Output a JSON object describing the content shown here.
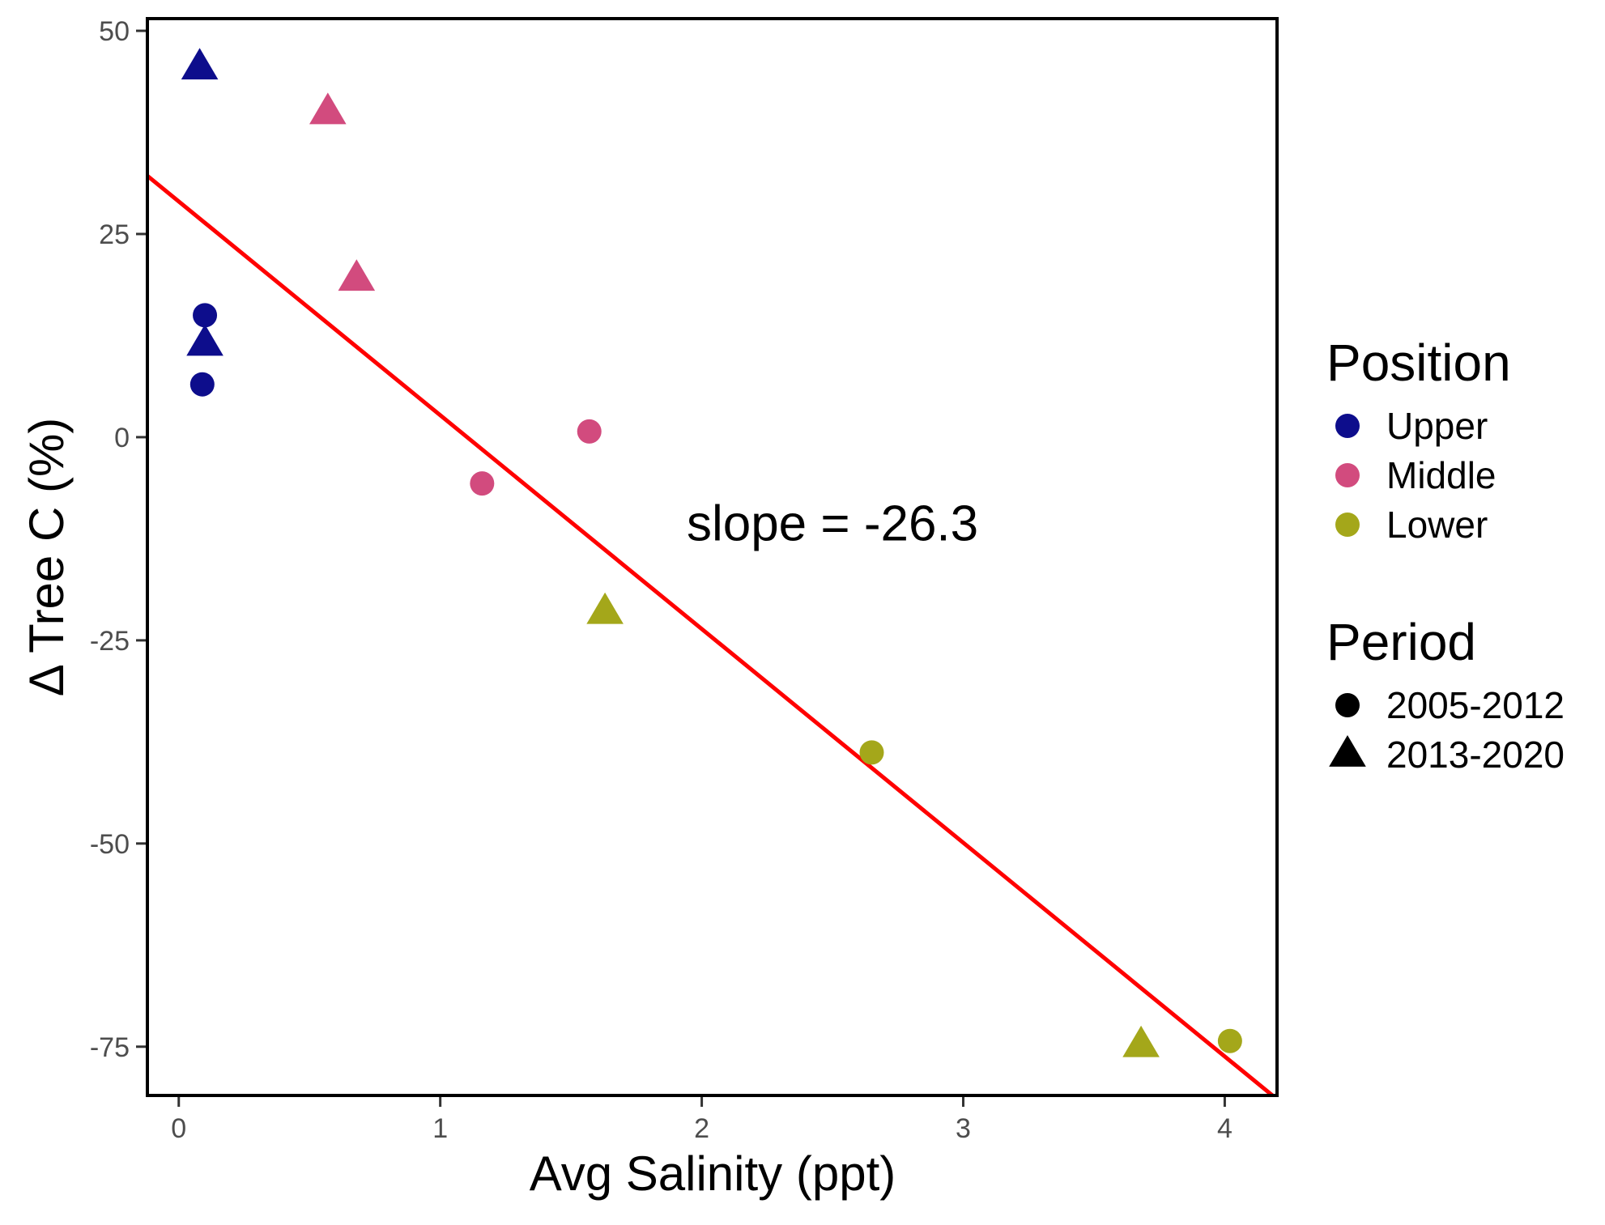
{
  "chart_data": {
    "type": "scatter",
    "title": "",
    "xlabel": "Avg Salinity (ppt)",
    "ylabel": "Δ Tree C (%)",
    "xlim": [
      -0.12,
      4.2
    ],
    "ylim": [
      -81,
      51.5
    ],
    "x_ticks": [
      0,
      1,
      2,
      3,
      4
    ],
    "x_tick_labels": [
      "0",
      "1",
      "2",
      "3",
      "4"
    ],
    "y_ticks": [
      50,
      25,
      0,
      -25,
      -50,
      -75
    ],
    "y_tick_labels": [
      "50",
      "25",
      "0",
      "-25",
      "-50",
      "-75"
    ],
    "grid": false,
    "legend_placement": "right",
    "annotation": "slope = -26.3",
    "annotation_at": [
      2.5,
      -10.5
    ],
    "trend_line": {
      "color": "#ff0000",
      "slope": -26.3,
      "intercept": 29,
      "x_range": [
        -0.12,
        4.2
      ]
    },
    "legends": {
      "position": {
        "title": "Position",
        "items": [
          {
            "label": "Upper",
            "color": "#0d0d8c"
          },
          {
            "label": "Middle",
            "color": "#d24b7e"
          },
          {
            "label": "Lower",
            "color": "#a4a71a"
          }
        ]
      },
      "period": {
        "title": "Period",
        "items": [
          {
            "label": "2005-2012",
            "shape": "circle"
          },
          {
            "label": "2013-2020",
            "shape": "triangle"
          }
        ]
      }
    },
    "points": [
      {
        "x": 0.08,
        "y": 45.5,
        "position": "Upper",
        "period": "2013-2020"
      },
      {
        "x": 0.1,
        "y": 15.0,
        "position": "Upper",
        "period": "2005-2012"
      },
      {
        "x": 0.1,
        "y": 11.5,
        "position": "Upper",
        "period": "2013-2020"
      },
      {
        "x": 0.09,
        "y": 6.5,
        "position": "Upper",
        "period": "2005-2012"
      },
      {
        "x": 0.57,
        "y": 40.0,
        "position": "Middle",
        "period": "2013-2020"
      },
      {
        "x": 0.68,
        "y": 19.5,
        "position": "Middle",
        "period": "2013-2020"
      },
      {
        "x": 1.57,
        "y": 0.7,
        "position": "Middle",
        "period": "2005-2012"
      },
      {
        "x": 1.16,
        "y": -5.7,
        "position": "Middle",
        "period": "2005-2012"
      },
      {
        "x": 1.63,
        "y": -21.5,
        "position": "Lower",
        "period": "2013-2020"
      },
      {
        "x": 2.65,
        "y": -38.8,
        "position": "Lower",
        "period": "2005-2012"
      },
      {
        "x": 3.68,
        "y": -74.8,
        "position": "Lower",
        "period": "2013-2020"
      },
      {
        "x": 4.02,
        "y": -74.3,
        "position": "Lower",
        "period": "2005-2012"
      }
    ]
  }
}
